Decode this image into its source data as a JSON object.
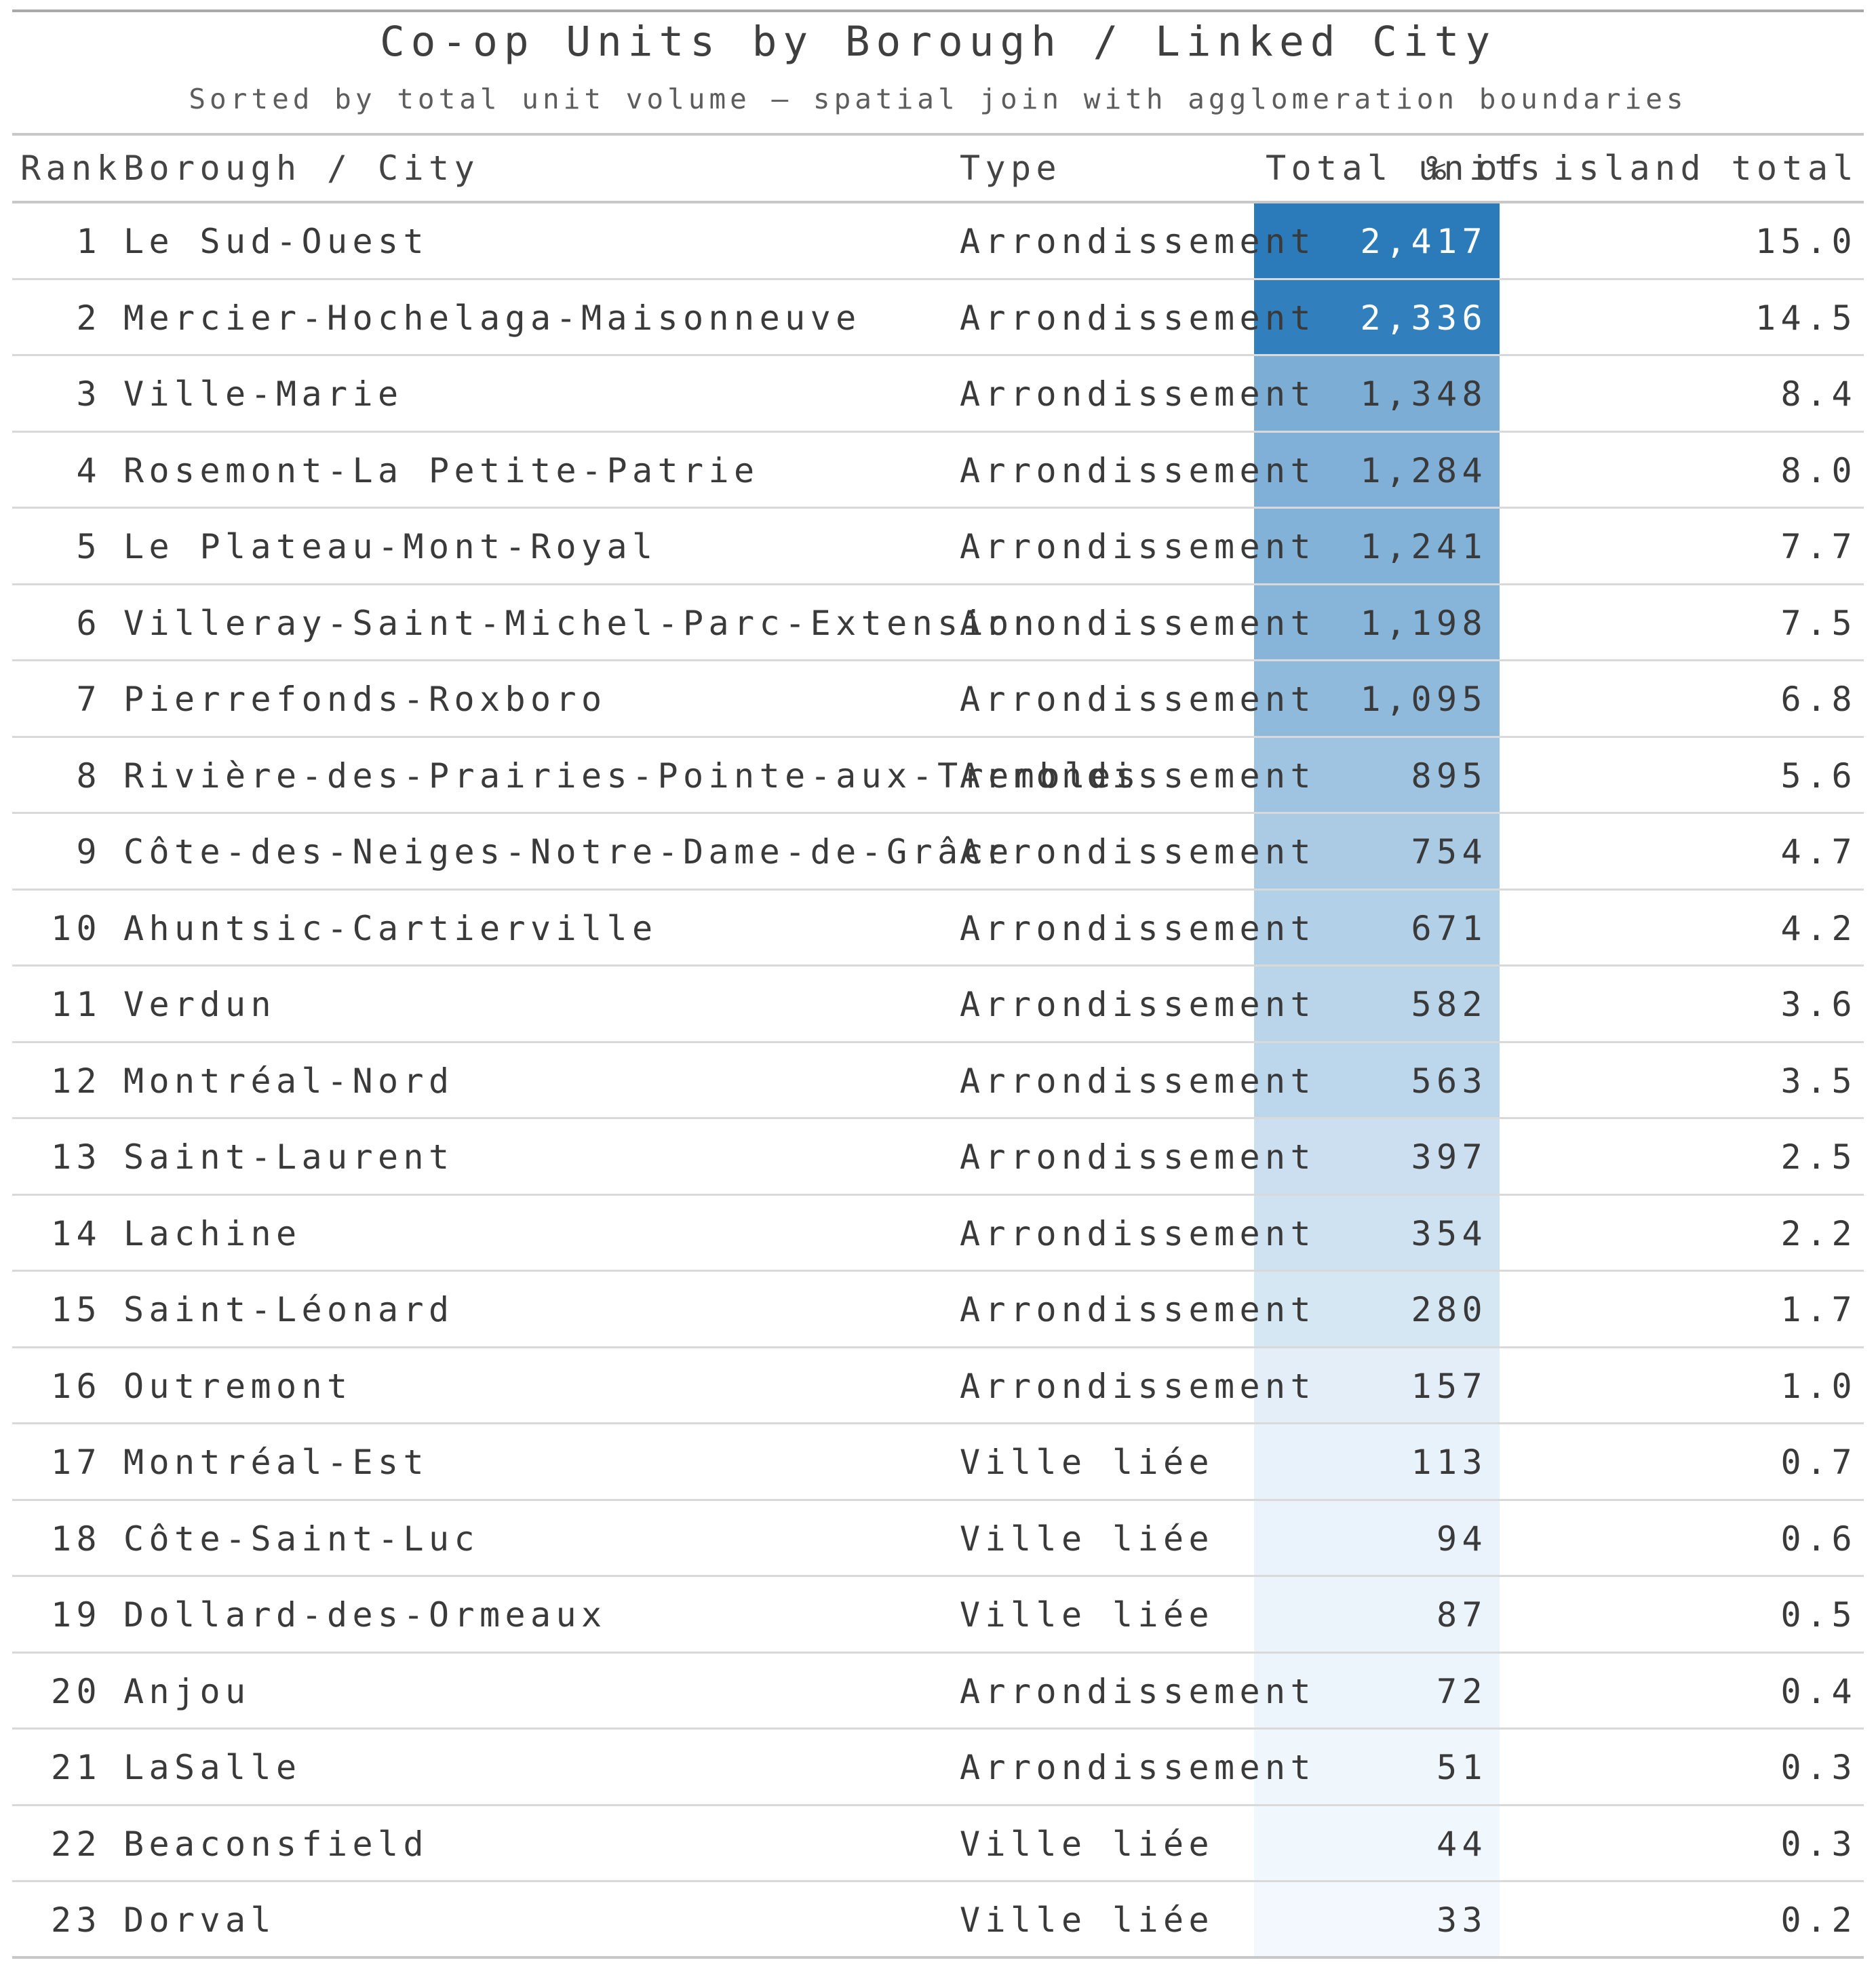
{
  "chart_data": {
    "type": "table",
    "title": "Co-op Units by Borough / Linked City",
    "subtitle": "Sorted by total unit volume — spatial join with agglomeration boundaries",
    "columns": [
      "Rank",
      "Borough / City",
      "Type",
      "Total units",
      "% of island total"
    ],
    "heatmap_column": "Total units",
    "heat_color_low": "#f7fbff",
    "heat_color_high": "#2b7bba",
    "rows": [
      {
        "rank": "1",
        "name": "Le Sud-Ouest",
        "type": "Arrondissement",
        "units": 2417,
        "units_label": "2,417",
        "pct": "15.0"
      },
      {
        "rank": "2",
        "name": "Mercier-Hochelaga-Maisonneuve",
        "type": "Arrondissement",
        "units": 2336,
        "units_label": "2,336",
        "pct": "14.5"
      },
      {
        "rank": "3",
        "name": "Ville-Marie",
        "type": "Arrondissement",
        "units": 1348,
        "units_label": "1,348",
        "pct": "8.4"
      },
      {
        "rank": "4",
        "name": "Rosemont-La Petite-Patrie",
        "type": "Arrondissement",
        "units": 1284,
        "units_label": "1,284",
        "pct": "8.0"
      },
      {
        "rank": "5",
        "name": "Le Plateau-Mont-Royal",
        "type": "Arrondissement",
        "units": 1241,
        "units_label": "1,241",
        "pct": "7.7"
      },
      {
        "rank": "6",
        "name": "Villeray-Saint-Michel-Parc-Extension",
        "type": "Arrondissement",
        "units": 1198,
        "units_label": "1,198",
        "pct": "7.5"
      },
      {
        "rank": "7",
        "name": "Pierrefonds-Roxboro",
        "type": "Arrondissement",
        "units": 1095,
        "units_label": "1,095",
        "pct": "6.8"
      },
      {
        "rank": "8",
        "name": "Rivière-des-Prairies-Pointe-aux-Trembles",
        "type": "Arrondissement",
        "units": 895,
        "units_label": "895",
        "pct": "5.6"
      },
      {
        "rank": "9",
        "name": "Côte-des-Neiges-Notre-Dame-de-Grâce",
        "type": "Arrondissement",
        "units": 754,
        "units_label": "754",
        "pct": "4.7"
      },
      {
        "rank": "10",
        "name": "Ahuntsic-Cartierville",
        "type": "Arrondissement",
        "units": 671,
        "units_label": "671",
        "pct": "4.2"
      },
      {
        "rank": "11",
        "name": "Verdun",
        "type": "Arrondissement",
        "units": 582,
        "units_label": "582",
        "pct": "3.6"
      },
      {
        "rank": "12",
        "name": "Montréal-Nord",
        "type": "Arrondissement",
        "units": 563,
        "units_label": "563",
        "pct": "3.5"
      },
      {
        "rank": "13",
        "name": "Saint-Laurent",
        "type": "Arrondissement",
        "units": 397,
        "units_label": "397",
        "pct": "2.5"
      },
      {
        "rank": "14",
        "name": "Lachine",
        "type": "Arrondissement",
        "units": 354,
        "units_label": "354",
        "pct": "2.2"
      },
      {
        "rank": "15",
        "name": "Saint-Léonard",
        "type": "Arrondissement",
        "units": 280,
        "units_label": "280",
        "pct": "1.7"
      },
      {
        "rank": "16",
        "name": "Outremont",
        "type": "Arrondissement",
        "units": 157,
        "units_label": "157",
        "pct": "1.0"
      },
      {
        "rank": "17",
        "name": "Montréal-Est",
        "type": "Ville liée",
        "units": 113,
        "units_label": "113",
        "pct": "0.7"
      },
      {
        "rank": "18",
        "name": "Côte-Saint-Luc",
        "type": "Ville liée",
        "units": 94,
        "units_label": "94",
        "pct": "0.6"
      },
      {
        "rank": "19",
        "name": "Dollard-des-Ormeaux",
        "type": "Ville liée",
        "units": 87,
        "units_label": "87",
        "pct": "0.5"
      },
      {
        "rank": "20",
        "name": "Anjou",
        "type": "Arrondissement",
        "units": 72,
        "units_label": "72",
        "pct": "0.4"
      },
      {
        "rank": "21",
        "name": "LaSalle",
        "type": "Arrondissement",
        "units": 51,
        "units_label": "51",
        "pct": "0.3"
      },
      {
        "rank": "22",
        "name": "Beaconsfield",
        "type": "Ville liée",
        "units": 44,
        "units_label": "44",
        "pct": "0.3"
      },
      {
        "rank": "23",
        "name": "Dorval",
        "type": "Ville liée",
        "units": 33,
        "units_label": "33",
        "pct": "0.2"
      }
    ]
  }
}
